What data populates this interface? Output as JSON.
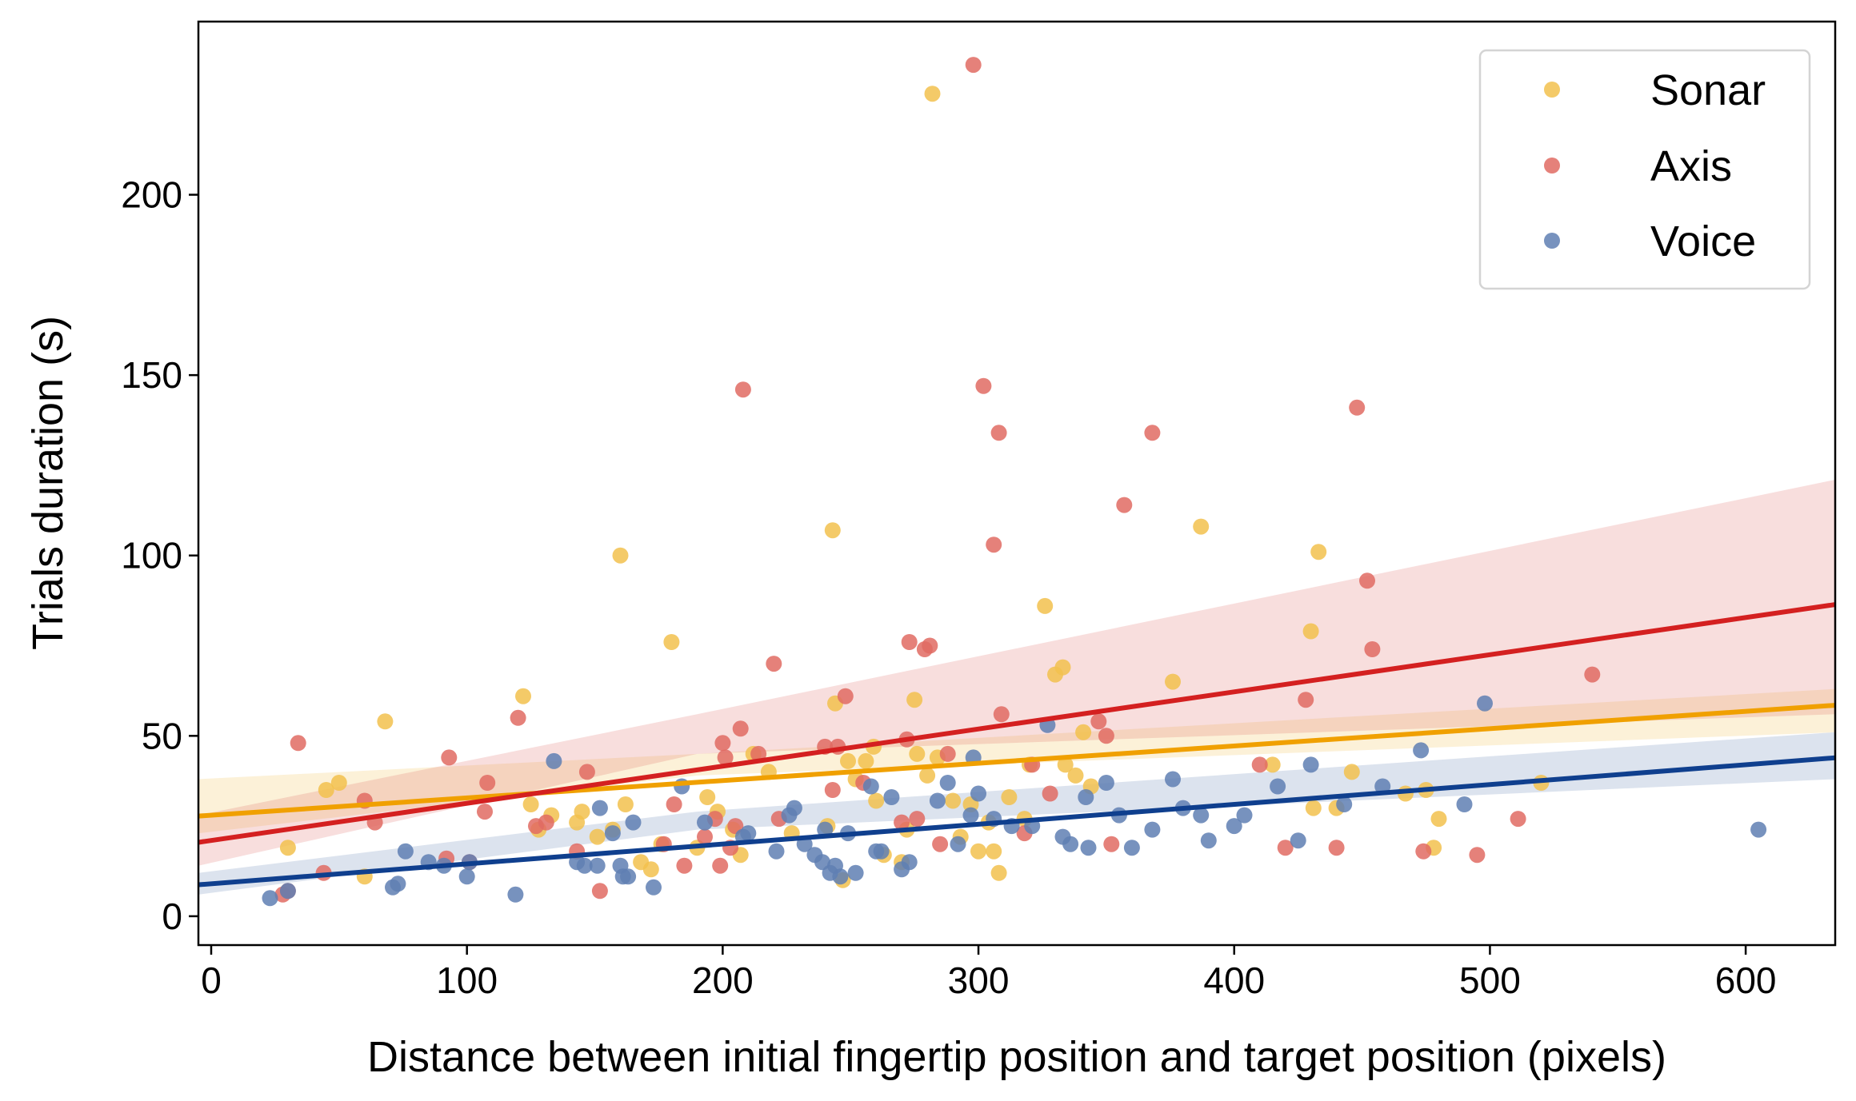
{
  "chart_data": {
    "type": "scatter",
    "xlabel": "Distance between initial fingertip position and target position (pixels)",
    "ylabel": "Trials duration (s)",
    "xlim": [
      -5,
      635
    ],
    "ylim": [
      -8,
      248
    ],
    "xticks": [
      0,
      100,
      200,
      300,
      400,
      500,
      600
    ],
    "yticks": [
      0,
      50,
      100,
      150,
      200
    ],
    "legend_position": "top-right",
    "grid": false,
    "series": [
      {
        "name": "Sonar",
        "color": "#f2c14e",
        "line_color": "#f0a000",
        "regression": {
          "intercept": 28,
          "slope": 0.048
        },
        "ci": {
          "left": [
            23,
            38
          ],
          "mid": [
            39,
            45
          ],
          "right": [
            51,
            63
          ]
        },
        "points": [
          [
            30,
            19
          ],
          [
            45,
            35
          ],
          [
            50,
            37
          ],
          [
            60,
            11
          ],
          [
            68,
            54
          ],
          [
            122,
            61
          ],
          [
            125,
            31
          ],
          [
            128,
            24
          ],
          [
            133,
            28
          ],
          [
            143,
            26
          ],
          [
            145,
            29
          ],
          [
            151,
            22
          ],
          [
            157,
            24
          ],
          [
            160,
            100
          ],
          [
            162,
            31
          ],
          [
            168,
            15
          ],
          [
            172,
            13
          ],
          [
            176,
            20
          ],
          [
            180,
            76
          ],
          [
            190,
            19
          ],
          [
            194,
            33
          ],
          [
            198,
            29
          ],
          [
            204,
            24
          ],
          [
            207,
            17
          ],
          [
            212,
            45
          ],
          [
            218,
            40
          ],
          [
            227,
            23
          ],
          [
            241,
            25
          ],
          [
            243,
            107
          ],
          [
            244,
            59
          ],
          [
            247,
            10
          ],
          [
            249,
            43
          ],
          [
            252,
            38
          ],
          [
            256,
            43
          ],
          [
            259,
            47
          ],
          [
            260,
            32
          ],
          [
            263,
            17
          ],
          [
            270,
            15
          ],
          [
            272,
            24
          ],
          [
            275,
            60
          ],
          [
            276,
            45
          ],
          [
            280,
            39
          ],
          [
            282,
            228
          ],
          [
            284,
            44
          ],
          [
            290,
            32
          ],
          [
            293,
            22
          ],
          [
            297,
            31
          ],
          [
            300,
            18
          ],
          [
            304,
            26
          ],
          [
            306,
            18
          ],
          [
            308,
            12
          ],
          [
            312,
            33
          ],
          [
            318,
            27
          ],
          [
            320,
            42
          ],
          [
            326,
            86
          ],
          [
            330,
            67
          ],
          [
            333,
            69
          ],
          [
            334,
            42
          ],
          [
            338,
            39
          ],
          [
            341,
            51
          ],
          [
            344,
            36
          ],
          [
            376,
            65
          ],
          [
            387,
            108
          ],
          [
            415,
            42
          ],
          [
            430,
            79
          ],
          [
            431,
            30
          ],
          [
            433,
            101
          ],
          [
            440,
            30
          ],
          [
            446,
            40
          ],
          [
            467,
            34
          ],
          [
            475,
            35
          ],
          [
            478,
            19
          ],
          [
            480,
            27
          ],
          [
            520,
            37
          ]
        ]
      },
      {
        "name": "Axis",
        "color": "#e06b63",
        "line_color": "#d42020",
        "regression": {
          "intercept": 21,
          "slope": 0.103
        },
        "ci": {
          "left": [
            14,
            28
          ],
          "mid": [
            45,
            56
          ],
          "right": [
            56,
            121
          ]
        },
        "points": [
          [
            28,
            6
          ],
          [
            30,
            7
          ],
          [
            34,
            48
          ],
          [
            44,
            12
          ],
          [
            60,
            32
          ],
          [
            64,
            26
          ],
          [
            92,
            16
          ],
          [
            93,
            44
          ],
          [
            101,
            15
          ],
          [
            107,
            29
          ],
          [
            108,
            37
          ],
          [
            120,
            55
          ],
          [
            127,
            25
          ],
          [
            131,
            26
          ],
          [
            143,
            18
          ],
          [
            147,
            40
          ],
          [
            152,
            7
          ],
          [
            177,
            20
          ],
          [
            181,
            31
          ],
          [
            185,
            14
          ],
          [
            193,
            22
          ],
          [
            197,
            27
          ],
          [
            199,
            14
          ],
          [
            200,
            48
          ],
          [
            201,
            44
          ],
          [
            203,
            19
          ],
          [
            205,
            25
          ],
          [
            207,
            52
          ],
          [
            208,
            146
          ],
          [
            214,
            45
          ],
          [
            220,
            70
          ],
          [
            222,
            27
          ],
          [
            240,
            47
          ],
          [
            243,
            35
          ],
          [
            245,
            47
          ],
          [
            248,
            61
          ],
          [
            255,
            37
          ],
          [
            270,
            26
          ],
          [
            272,
            49
          ],
          [
            273,
            76
          ],
          [
            276,
            27
          ],
          [
            279,
            74
          ],
          [
            281,
            75
          ],
          [
            285,
            20
          ],
          [
            288,
            45
          ],
          [
            298,
            236
          ],
          [
            302,
            147
          ],
          [
            306,
            103
          ],
          [
            308,
            134
          ],
          [
            309,
            56
          ],
          [
            318,
            23
          ],
          [
            321,
            42
          ],
          [
            328,
            34
          ],
          [
            347,
            54
          ],
          [
            350,
            50
          ],
          [
            352,
            20
          ],
          [
            357,
            114
          ],
          [
            368,
            134
          ],
          [
            410,
            42
          ],
          [
            420,
            19
          ],
          [
            428,
            60
          ],
          [
            440,
            19
          ],
          [
            448,
            141
          ],
          [
            452,
            93
          ],
          [
            454,
            74
          ],
          [
            474,
            18
          ],
          [
            495,
            17
          ],
          [
            511,
            27
          ],
          [
            540,
            67
          ]
        ]
      },
      {
        "name": "Voice",
        "color": "#5f7fb3",
        "line_color": "#0f3f8e",
        "regression": {
          "intercept": 9,
          "slope": 0.055
        },
        "ci": {
          "left": [
            6,
            12
          ],
          "mid": [
            24,
            29
          ],
          "right": [
            38,
            51
          ]
        },
        "points": [
          [
            23,
            5
          ],
          [
            30,
            7
          ],
          [
            71,
            8
          ],
          [
            73,
            9
          ],
          [
            76,
            18
          ],
          [
            85,
            15
          ],
          [
            91,
            14
          ],
          [
            100,
            11
          ],
          [
            101,
            15
          ],
          [
            119,
            6
          ],
          [
            134,
            43
          ],
          [
            143,
            15
          ],
          [
            146,
            14
          ],
          [
            151,
            14
          ],
          [
            152,
            30
          ],
          [
            157,
            23
          ],
          [
            160,
            14
          ],
          [
            161,
            11
          ],
          [
            163,
            11
          ],
          [
            165,
            26
          ],
          [
            173,
            8
          ],
          [
            184,
            36
          ],
          [
            193,
            26
          ],
          [
            208,
            22
          ],
          [
            210,
            23
          ],
          [
            221,
            18
          ],
          [
            226,
            28
          ],
          [
            228,
            30
          ],
          [
            232,
            20
          ],
          [
            236,
            17
          ],
          [
            239,
            15
          ],
          [
            240,
            24
          ],
          [
            242,
            12
          ],
          [
            244,
            14
          ],
          [
            246,
            11
          ],
          [
            249,
            23
          ],
          [
            252,
            12
          ],
          [
            258,
            36
          ],
          [
            260,
            18
          ],
          [
            262,
            18
          ],
          [
            266,
            33
          ],
          [
            270,
            13
          ],
          [
            273,
            15
          ],
          [
            284,
            32
          ],
          [
            288,
            37
          ],
          [
            292,
            20
          ],
          [
            297,
            28
          ],
          [
            298,
            44
          ],
          [
            300,
            34
          ],
          [
            306,
            27
          ],
          [
            313,
            25
          ],
          [
            321,
            25
          ],
          [
            327,
            53
          ],
          [
            333,
            22
          ],
          [
            336,
            20
          ],
          [
            342,
            33
          ],
          [
            343,
            19
          ],
          [
            350,
            37
          ],
          [
            355,
            28
          ],
          [
            360,
            19
          ],
          [
            368,
            24
          ],
          [
            376,
            38
          ],
          [
            380,
            30
          ],
          [
            387,
            28
          ],
          [
            390,
            21
          ],
          [
            400,
            25
          ],
          [
            404,
            28
          ],
          [
            417,
            36
          ],
          [
            425,
            21
          ],
          [
            430,
            42
          ],
          [
            443,
            31
          ],
          [
            458,
            36
          ],
          [
            473,
            46
          ],
          [
            490,
            31
          ],
          [
            498,
            59
          ],
          [
            605,
            24
          ]
        ]
      }
    ]
  }
}
